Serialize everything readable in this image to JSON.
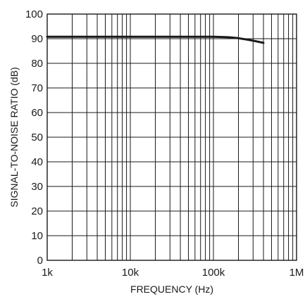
{
  "chart_data": {
    "type": "line",
    "title": "",
    "xlabel": "FREQUENCY (Hz)",
    "ylabel": "SIGNAL-TO-NOISE RATIO (dB)",
    "xscale": "log",
    "xlim": [
      1000,
      1000000
    ],
    "ylim": [
      0,
      100
    ],
    "xticks": [
      {
        "value": 1000,
        "label": "1k"
      },
      {
        "value": 10000,
        "label": "10k"
      },
      {
        "value": 100000,
        "label": "100k"
      },
      {
        "value": 1000000,
        "label": "1M"
      }
    ],
    "yticks": [
      0,
      10,
      20,
      30,
      40,
      50,
      60,
      70,
      80,
      90,
      100
    ],
    "grid": true,
    "legend": "none",
    "series": [
      {
        "color": "#1a1a1a",
        "x": [
          1000,
          10000,
          50000,
          100000,
          150000,
          200000,
          250000,
          300000,
          400000
        ],
        "y": [
          90.8,
          90.8,
          90.8,
          90.8,
          90.6,
          90.2,
          89.7,
          89.2,
          88.3
        ]
      }
    ]
  }
}
